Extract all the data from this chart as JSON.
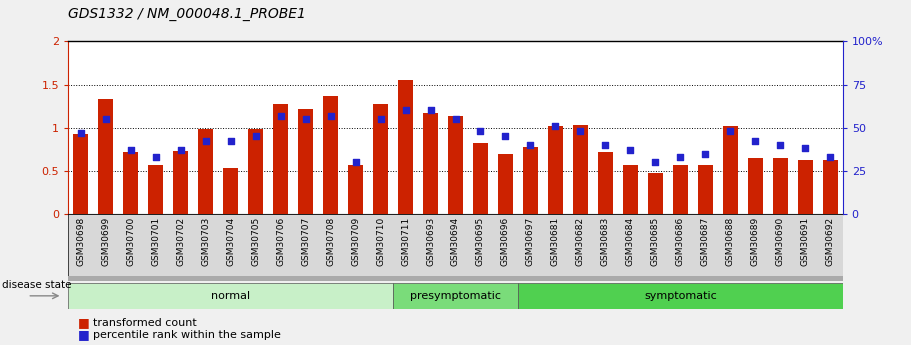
{
  "title": "GDS1332 / NM_000048.1_PROBE1",
  "samples": [
    "GSM30698",
    "GSM30699",
    "GSM30700",
    "GSM30701",
    "GSM30702",
    "GSM30703",
    "GSM30704",
    "GSM30705",
    "GSM30706",
    "GSM30707",
    "GSM30708",
    "GSM30709",
    "GSM30710",
    "GSM30711",
    "GSM30693",
    "GSM30694",
    "GSM30695",
    "GSM30696",
    "GSM30697",
    "GSM30681",
    "GSM30682",
    "GSM30683",
    "GSM30684",
    "GSM30685",
    "GSM30686",
    "GSM30687",
    "GSM30688",
    "GSM30689",
    "GSM30690",
    "GSM30691",
    "GSM30692"
  ],
  "bar_values": [
    0.93,
    1.33,
    0.72,
    0.57,
    0.73,
    0.98,
    0.53,
    0.98,
    1.27,
    1.22,
    1.37,
    0.57,
    1.27,
    1.55,
    1.17,
    1.13,
    0.82,
    0.7,
    0.77,
    1.02,
    1.03,
    0.72,
    0.57,
    0.48,
    0.57,
    0.57,
    1.02,
    0.65,
    0.65,
    0.62,
    0.63
  ],
  "percentile_values": [
    47,
    55,
    37,
    33,
    37,
    42,
    42,
    45,
    57,
    55,
    57,
    30,
    55,
    60,
    60,
    55,
    48,
    45,
    40,
    51,
    48,
    40,
    37,
    30,
    33,
    35,
    48,
    42,
    40,
    38,
    33
  ],
  "groups": [
    {
      "label": "normal",
      "start": 0,
      "end": 13,
      "color": "#c8f0c8"
    },
    {
      "label": "presymptomatic",
      "start": 13,
      "end": 18,
      "color": "#7adc7a"
    },
    {
      "label": "symptomatic",
      "start": 18,
      "end": 31,
      "color": "#50d050"
    }
  ],
  "bar_color": "#cc2200",
  "dot_color": "#2222cc",
  "ylim_left": [
    0,
    2
  ],
  "ylim_right": [
    0,
    100
  ],
  "yticks_left": [
    0,
    0.5,
    1.0,
    1.5,
    2.0
  ],
  "ytick_labels_left": [
    "0",
    "0.5",
    "1",
    "1.5",
    "2"
  ],
  "yticks_right": [
    0,
    25,
    50,
    75,
    100
  ],
  "ytick_labels_right": [
    "0",
    "25",
    "50",
    "75",
    "100%"
  ],
  "hlines": [
    0.5,
    1.0,
    1.5
  ],
  "disease_state_label": "disease state",
  "legend_bar_label": "transformed count",
  "legend_dot_label": "percentile rank within the sample",
  "bg_color": "#f0f0f0",
  "plot_bg_color": "#ffffff",
  "title_fontsize": 10,
  "axis_fontsize": 8,
  "label_fontsize": 8
}
